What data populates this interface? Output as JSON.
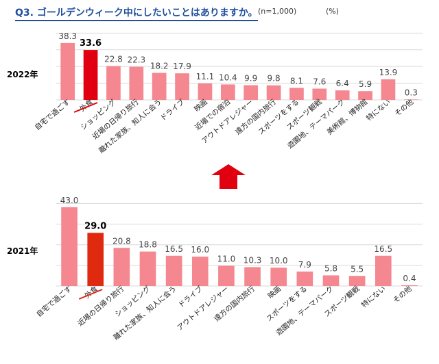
{
  "header": {
    "title": "Q3. ゴールデンウィーク中にしたいことはありますか。",
    "note": "(n=1,000)",
    "unit": "(%)"
  },
  "colors": {
    "bar": "#f4878f",
    "highlight": "#e0000f",
    "highlight2021": "#e02a10",
    "arrow": "#e0000f",
    "grid": "#d9d9d9"
  },
  "chart_data": [
    {
      "type": "bar",
      "title": "2022年",
      "categories": [
        "自宅で過ごす",
        "外食",
        "ショッピング",
        "近場の日帰り旅行",
        "離れた家族、知人に会う",
        "ドライブ",
        "映画",
        "近場での宿泊",
        "アウトドアレジャー",
        "遠方の国内旅行",
        "スポーツをする",
        "スポーツ観戦",
        "遊園地、テーマパーク",
        "美術館、博物館",
        "特にない",
        "その他"
      ],
      "values": [
        38.3,
        33.6,
        22.8,
        22.3,
        18.2,
        17.9,
        11.1,
        10.4,
        9.9,
        9.8,
        8.1,
        7.6,
        6.4,
        5.9,
        13.9,
        0.3
      ],
      "value_labels": [
        "38.3",
        "33.6",
        "22.8",
        "22.3",
        "18.2",
        "17.9",
        "11.1",
        "10.4",
        "9.9",
        "9.8",
        "8.1",
        "7.6",
        "6.4",
        "5.9",
        "13.9",
        "0.3"
      ],
      "highlight_index": 1,
      "ylim": [
        0,
        45
      ]
    },
    {
      "type": "bar",
      "title": "2021年",
      "categories": [
        "自宅で過ごす",
        "外食",
        "近場の日帰り旅行",
        "ショッピング",
        "離れた家族、知人に会う",
        "ドライブ",
        "アウトドアレジャー",
        "遠方の国内旅行",
        "映画",
        "スポーツをする",
        "遊園地、テーマパーク",
        "スポーツ観戦",
        "特にない",
        "その他"
      ],
      "values": [
        43.0,
        29.0,
        20.8,
        18.8,
        16.5,
        16.0,
        11.0,
        10.3,
        10.0,
        7.9,
        5.8,
        5.5,
        16.5,
        0.4
      ],
      "value_labels": [
        "43.0",
        "29.0",
        "20.8",
        "18.8",
        "16.5",
        "16.0",
        "11.0",
        "10.3",
        "10.0",
        "7.9",
        "5.8",
        "5.5",
        "16.5",
        "0.4"
      ],
      "highlight_index": 1,
      "ylim": [
        0,
        45
      ]
    }
  ]
}
